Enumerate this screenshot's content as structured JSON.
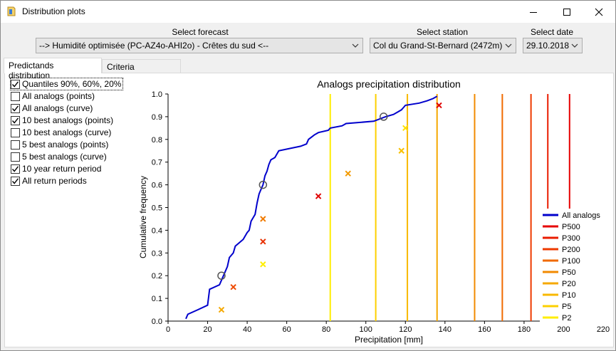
{
  "window": {
    "title": "Distribution plots",
    "controls": [
      "minimize",
      "maximize",
      "close"
    ]
  },
  "selectors": {
    "forecast": {
      "label": "Select forecast",
      "value": "--> Humidité optimisée (PC-AZ4o-AHI2o) - Crêtes du sud <--"
    },
    "station": {
      "label": "Select station",
      "value": "Col du Grand-St-Bernard (2472m)"
    },
    "date": {
      "label": "Select date",
      "value": "29.10.2018"
    }
  },
  "tabs": [
    {
      "label": "Predictands distribution",
      "active": true
    },
    {
      "label": "Criteria distribution",
      "active": false
    }
  ],
  "options": [
    {
      "label": "Quantiles 90%, 60%, 20%",
      "checked": true
    },
    {
      "label": "All analogs (points)",
      "checked": false
    },
    {
      "label": "All analogs (curve)",
      "checked": true
    },
    {
      "label": "10 best analogs (points)",
      "checked": true
    },
    {
      "label": "10 best analogs (curve)",
      "checked": false
    },
    {
      "label": "5 best analogs (points)",
      "checked": false
    },
    {
      "label": "5 best analogs (curve)",
      "checked": false
    },
    {
      "label": "10 year return period",
      "checked": true
    },
    {
      "label": "All return periods",
      "checked": true
    }
  ],
  "chart_data": {
    "type": "line",
    "title": "Analogs precipitation distribution",
    "xlabel": "Precipitation [mm]",
    "ylabel": "Cumulative frequency",
    "xlim": [
      0,
      220
    ],
    "ylim": [
      0,
      1
    ],
    "xticks": [
      "0",
      "20",
      "40",
      "60",
      "80",
      "100",
      "120",
      "140",
      "160",
      "180",
      "200",
      "220"
    ],
    "yticks": [
      "0.0",
      "0.1",
      "0.2",
      "0.3",
      "0.4",
      "0.5",
      "0.6",
      "0.7",
      "0.8",
      "0.9",
      "1.0"
    ],
    "legend_position": "bottom-right",
    "series": [
      {
        "name": "All analogs",
        "color": "#0000cc",
        "kind": "curve",
        "points": [
          [
            9,
            0.01
          ],
          [
            10,
            0.03
          ],
          [
            15,
            0.05
          ],
          [
            20,
            0.07
          ],
          [
            21,
            0.14
          ],
          [
            26,
            0.16
          ],
          [
            28,
            0.2
          ],
          [
            30,
            0.24
          ],
          [
            31,
            0.28
          ],
          [
            33,
            0.3
          ],
          [
            34,
            0.33
          ],
          [
            38,
            0.36
          ],
          [
            40,
            0.39
          ],
          [
            41,
            0.4
          ],
          [
            42,
            0.44
          ],
          [
            44,
            0.47
          ],
          [
            45,
            0.52
          ],
          [
            46,
            0.56
          ],
          [
            47,
            0.58
          ],
          [
            48,
            0.6
          ],
          [
            49,
            0.64
          ],
          [
            50,
            0.66
          ],
          [
            51,
            0.69
          ],
          [
            52,
            0.71
          ],
          [
            54,
            0.72
          ],
          [
            56,
            0.75
          ],
          [
            67,
            0.77
          ],
          [
            70,
            0.78
          ],
          [
            71,
            0.8
          ],
          [
            74,
            0.82
          ],
          [
            76,
            0.83
          ],
          [
            81,
            0.84
          ],
          [
            82,
            0.85
          ],
          [
            88,
            0.86
          ],
          [
            90,
            0.87
          ],
          [
            104,
            0.88
          ],
          [
            107,
            0.89
          ],
          [
            110,
            0.9
          ],
          [
            114,
            0.91
          ],
          [
            116,
            0.92
          ],
          [
            118,
            0.93
          ],
          [
            119,
            0.94
          ],
          [
            120,
            0.95
          ],
          [
            127,
            0.96
          ],
          [
            131,
            0.97
          ],
          [
            134,
            0.98
          ],
          [
            136,
            0.99
          ]
        ]
      },
      {
        "name": "P500",
        "color": "#e60000",
        "kind": "vline",
        "x": 203
      },
      {
        "name": "P300",
        "color": "#ea1c00",
        "kind": "vline",
        "x": 192
      },
      {
        "name": "P200",
        "color": "#ee3a00",
        "kind": "vline",
        "x": 183.5
      },
      {
        "name": "P100",
        "color": "#f06a00",
        "kind": "vline",
        "x": 169
      },
      {
        "name": "P50",
        "color": "#f28a00",
        "kind": "vline",
        "x": 155
      },
      {
        "name": "P20",
        "color": "#f5a800",
        "kind": "vline",
        "x": 136
      },
      {
        "name": "P10",
        "color": "#f8b800",
        "kind": "vline",
        "x": 121
      },
      {
        "name": "P5",
        "color": "#fcd000",
        "kind": "vline",
        "x": 105
      },
      {
        "name": "P2",
        "color": "#ffee00",
        "kind": "vline",
        "x": 82
      }
    ],
    "quantile_markers": [
      [
        27,
        0.2
      ],
      [
        48,
        0.6
      ],
      [
        109,
        0.9
      ]
    ],
    "best_analogs": [
      {
        "x": 137,
        "y": 0.95,
        "color": "#e00000"
      },
      {
        "x": 76,
        "y": 0.55,
        "color": "#e00000"
      },
      {
        "x": 48,
        "y": 0.35,
        "color": "#e83000"
      },
      {
        "x": 33,
        "y": 0.15,
        "color": "#ee4a00"
      },
      {
        "x": 48,
        "y": 0.45,
        "color": "#f07a00"
      },
      {
        "x": 91,
        "y": 0.65,
        "color": "#f29a00"
      },
      {
        "x": 27,
        "y": 0.05,
        "color": "#f5a800"
      },
      {
        "x": 118,
        "y": 0.75,
        "color": "#f8c000"
      },
      {
        "x": 120,
        "y": 0.85,
        "color": "#fde000"
      },
      {
        "x": 48,
        "y": 0.25,
        "color": "#ffee00"
      }
    ]
  }
}
